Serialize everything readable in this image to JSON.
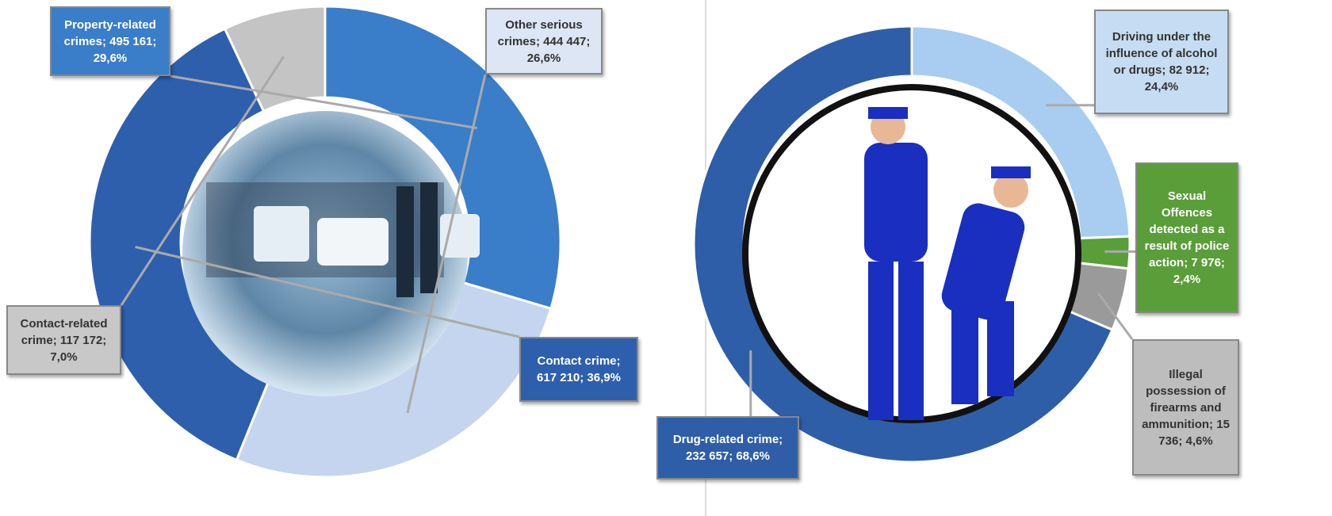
{
  "chart_data": [
    {
      "type": "donut",
      "categories": [
        "Property-related crimes;",
        "Other serious crimes;",
        "Contact crime;",
        "Contact-related crime;"
      ],
      "values": [
        495161,
        444447,
        617210,
        117172
      ],
      "value_labels": [
        "495 161;",
        "444 447;",
        "617 210;",
        "117 172;"
      ],
      "percentages": [
        29.6,
        26.6,
        36.9,
        7.0
      ],
      "percentage_labels": [
        "29,6%",
        "26,6%",
        "36,9%",
        "7,0%"
      ],
      "colors": [
        "#3a7dc9",
        "#c5d5ef",
        "#2e5fad",
        "#c4c4c4"
      ]
    },
    {
      "type": "donut",
      "categories": [
        "Driving under the influence of alcohol or drugs;",
        "Sexual Offences detected as a result of police action;",
        "Illegal possession of firearms and ammunition;",
        "Drug-related crime;"
      ],
      "values": [
        82912,
        7976,
        15736,
        232657
      ],
      "value_labels": [
        "82 912;",
        "7 976;",
        "15 736;",
        "232 657;"
      ],
      "percentages": [
        24.4,
        2.4,
        4.6,
        68.6
      ],
      "percentage_labels": [
        "24,4%",
        "2,4%",
        "4,6%",
        "68,6%"
      ],
      "colors": [
        "#a9cdf0",
        "#5a9e3a",
        "#9a9a9a",
        "#2f5ea8"
      ]
    }
  ]
}
